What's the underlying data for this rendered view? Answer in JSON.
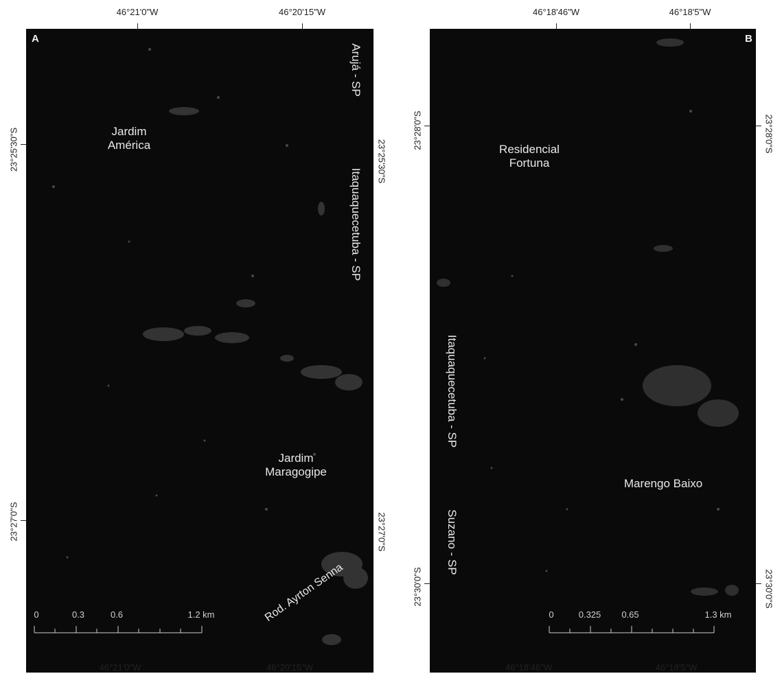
{
  "panel_a": {
    "letter": "A",
    "top_coords": [
      "46°21'0\"W",
      "46°20'15\"W"
    ],
    "bottom_coords": [
      "46°21'0\"W",
      "46°20'15\"W"
    ],
    "left_coords": [
      "23°25'30\"S",
      "23°27'0\"S"
    ],
    "right_coords": [
      "23°25'30\"S",
      "23°27'0\"S"
    ],
    "places": [
      {
        "line1": "Jardim",
        "line2": "América"
      },
      {
        "line1": "Jardim",
        "line2": "Maragogipe"
      }
    ],
    "municipalities": [
      "Arujá - SP",
      "Itaquaquecetuba - SP"
    ],
    "road": "Rod. Ayrton Senna",
    "scalebar": {
      "ticks": [
        "0",
        "0.3",
        "0.6",
        "1.2 km"
      ]
    }
  },
  "panel_b": {
    "letter": "B",
    "top_coords": [
      "46°18'46\"W",
      "46°18'5\"W"
    ],
    "bottom_coords": [
      "46°18'46\"W",
      "46°18'5\"W"
    ],
    "left_coords": [
      "23°28'0\"S",
      "23°30'0\"S"
    ],
    "right_coords": [
      "23°28'0\"S",
      "23°30'0\"S"
    ],
    "places": [
      {
        "line1": "Residencial",
        "line2": "Fortuna"
      },
      {
        "line1": "Marengo Baixo",
        "line2": ""
      }
    ],
    "municipalities": [
      "Itaquaquecetuba - SP",
      "Suzano - SP"
    ],
    "scalebar": {
      "ticks": [
        "0",
        "0.325",
        "0.65",
        "1.3 km"
      ]
    }
  },
  "colors": {
    "imagery": "#0a0a0a",
    "label": "#e8e8e8",
    "frame_text": "#222222"
  }
}
